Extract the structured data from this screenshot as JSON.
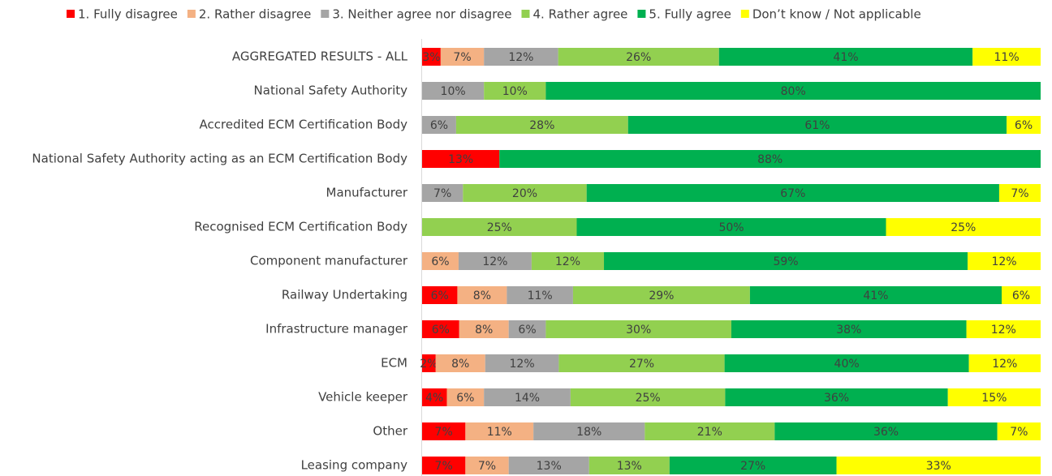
{
  "chart_data": {
    "type": "stacked_bar_horizontal",
    "categories": [
      "AGGREGATED RESULTS - ALL",
      "National Safety Authority",
      "Accredited ECM Certification Body",
      "National Safety Authority acting as an ECM Certification Body",
      "Manufacturer",
      "Recognised ECM Certification Body",
      "Component manufacturer",
      "Railway Undertaking",
      "Infrastructure manager",
      "ECM",
      "Vehicle keeper",
      "Other",
      "Leasing company"
    ],
    "xlim": [
      0,
      100
    ],
    "legend": "top",
    "series": [
      {
        "name": "1. Fully disagree",
        "color": "#ff0000",
        "values": [
          3,
          null,
          null,
          12.5,
          null,
          null,
          null,
          5.7,
          6,
          2.2,
          4,
          7,
          7
        ],
        "value_labels": [
          "3%",
          null,
          null,
          "13%",
          null,
          null,
          null,
          "6%",
          "6%",
          "2%",
          "4%",
          "7%",
          "7%"
        ]
      },
      {
        "name": "2. Rather disagree",
        "color": "#f4b183",
        "values": [
          7,
          null,
          null,
          null,
          null,
          null,
          5.9,
          8,
          8,
          8,
          6,
          11,
          7
        ],
        "value_labels": [
          "7%",
          null,
          null,
          null,
          null,
          null,
          "6%",
          "8%",
          "8%",
          "8%",
          "6%",
          "11%",
          "7%"
        ]
      },
      {
        "name": "3. Neither agree nor disagree",
        "color": "#a5a5a5",
        "values": [
          12,
          10,
          5.5,
          null,
          6.6,
          null,
          11.8,
          10.7,
          6,
          11.9,
          14,
          18,
          13
        ],
        "value_labels": [
          "12%",
          "10%",
          "6%",
          null,
          "7%",
          null,
          "12%",
          "11%",
          "6%",
          "12%",
          "14%",
          "18%",
          "13%"
        ]
      },
      {
        "name": "4. Rather agree",
        "color": "#92d050",
        "values": [
          26,
          10,
          27.8,
          null,
          20,
          25,
          11.7,
          28.6,
          30,
          26.8,
          25,
          21,
          13
        ],
        "value_labels": [
          "26%",
          "10%",
          "28%",
          null,
          "20%",
          "25%",
          "12%",
          "29%",
          "30%",
          "27%",
          "25%",
          "21%",
          "13%"
        ]
      },
      {
        "name": "5. Fully agree",
        "color": "#00b050",
        "values": [
          41,
          80,
          61.2,
          87.5,
          66.7,
          50,
          58.8,
          40.7,
          38,
          39.5,
          36,
          36,
          27
        ],
        "value_labels": [
          "41%",
          "80%",
          "61%",
          "88%",
          "67%",
          "50%",
          "59%",
          "41%",
          "38%",
          "40%",
          "36%",
          "36%",
          "27%"
        ]
      },
      {
        "name": "Don’t know / Not applicable",
        "color": "#ffff00",
        "values": [
          11,
          null,
          5.5,
          null,
          6.7,
          25,
          11.8,
          6.3,
          12,
          11.6,
          15,
          7,
          33
        ],
        "value_labels": [
          "11%",
          null,
          "6%",
          null,
          "7%",
          "25%",
          "12%",
          "6%",
          "12%",
          "12%",
          "15%",
          "7%",
          "33%"
        ]
      }
    ]
  }
}
